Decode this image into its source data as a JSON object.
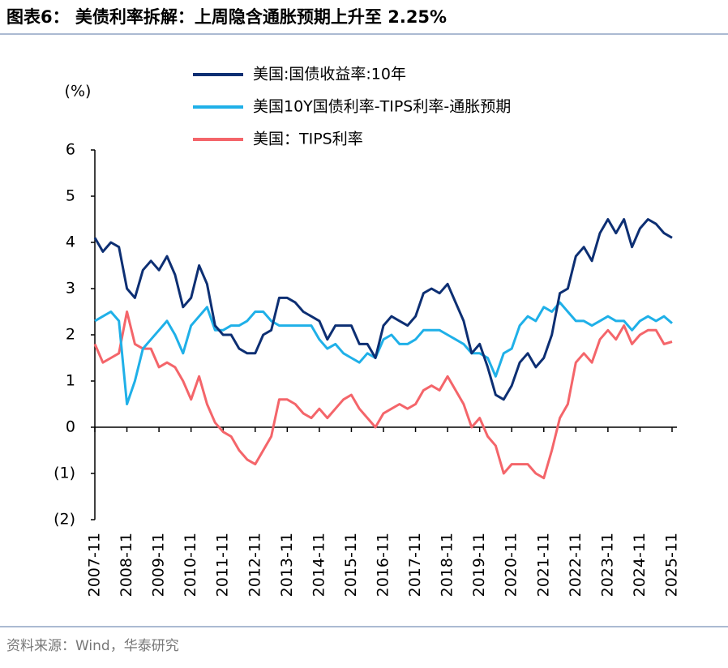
{
  "chart_data": {
    "type": "line",
    "title": "图表6： 美债利率拆解：上周隐含通胀预期上升至 2.25%",
    "y_label": "(%)",
    "source": "资料来源：Wind，华泰研究",
    "x": [
      "2007-11",
      "2008-02",
      "2008-05",
      "2008-08",
      "2008-11",
      "2009-02",
      "2009-05",
      "2009-08",
      "2009-11",
      "2010-02",
      "2010-05",
      "2010-08",
      "2010-11",
      "2011-02",
      "2011-05",
      "2011-08",
      "2011-11",
      "2012-02",
      "2012-05",
      "2012-08",
      "2012-11",
      "2013-02",
      "2013-05",
      "2013-08",
      "2013-11",
      "2014-02",
      "2014-05",
      "2014-08",
      "2014-11",
      "2015-02",
      "2015-05",
      "2015-08",
      "2015-11",
      "2016-02",
      "2016-05",
      "2016-08",
      "2016-11",
      "2017-02",
      "2017-05",
      "2017-08",
      "2017-11",
      "2018-02",
      "2018-05",
      "2018-08",
      "2018-11",
      "2019-02",
      "2019-05",
      "2019-08",
      "2019-11",
      "2020-02",
      "2020-05",
      "2020-08",
      "2020-11",
      "2021-02",
      "2021-05",
      "2021-08",
      "2021-11",
      "2022-02",
      "2022-05",
      "2022-08",
      "2022-11",
      "2023-02",
      "2023-05",
      "2023-08",
      "2023-11",
      "2024-02",
      "2024-05",
      "2024-08",
      "2024-11",
      "2025-02",
      "2025-05",
      "2025-08",
      "2025-11"
    ],
    "series": [
      {
        "name": "美国:国债收益率:10年",
        "color": "#0d2f73",
        "values": [
          4.1,
          3.8,
          4.0,
          3.9,
          3.0,
          2.8,
          3.4,
          3.6,
          3.4,
          3.7,
          3.3,
          2.6,
          2.8,
          3.5,
          3.1,
          2.2,
          2.0,
          2.0,
          1.7,
          1.6,
          1.6,
          2.0,
          2.1,
          2.8,
          2.8,
          2.7,
          2.5,
          2.4,
          2.3,
          1.9,
          2.2,
          2.2,
          2.2,
          1.8,
          1.8,
          1.5,
          2.2,
          2.4,
          2.3,
          2.2,
          2.4,
          2.9,
          3.0,
          2.9,
          3.1,
          2.7,
          2.3,
          1.6,
          1.8,
          1.3,
          0.7,
          0.6,
          0.9,
          1.4,
          1.6,
          1.3,
          1.5,
          2.0,
          2.9,
          3.0,
          3.7,
          3.9,
          3.6,
          4.2,
          4.5,
          4.2,
          4.5,
          3.9,
          4.3,
          4.5,
          4.4,
          4.2,
          4.1
        ]
      },
      {
        "name": "美国10Y国债利率-TIPS利率-通胀预期",
        "color": "#1fb0e8",
        "values": [
          2.3,
          2.4,
          2.5,
          2.3,
          0.5,
          1.0,
          1.7,
          1.9,
          2.1,
          2.3,
          2.0,
          1.6,
          2.2,
          2.4,
          2.6,
          2.1,
          2.1,
          2.2,
          2.2,
          2.3,
          2.5,
          2.5,
          2.3,
          2.2,
          2.2,
          2.2,
          2.2,
          2.2,
          1.9,
          1.7,
          1.8,
          1.6,
          1.5,
          1.4,
          1.6,
          1.5,
          1.9,
          2.0,
          1.8,
          1.8,
          1.9,
          2.1,
          2.1,
          2.1,
          2.0,
          1.9,
          1.8,
          1.6,
          1.6,
          1.5,
          1.1,
          1.6,
          1.7,
          2.2,
          2.4,
          2.3,
          2.6,
          2.5,
          2.7,
          2.5,
          2.3,
          2.3,
          2.2,
          2.3,
          2.4,
          2.3,
          2.3,
          2.1,
          2.3,
          2.4,
          2.3,
          2.4,
          2.25
        ]
      },
      {
        "name": "美国：TIPS利率",
        "color": "#f4656a",
        "values": [
          1.8,
          1.4,
          1.5,
          1.6,
          2.5,
          1.8,
          1.7,
          1.7,
          1.3,
          1.4,
          1.3,
          1.0,
          0.6,
          1.1,
          0.5,
          0.1,
          -0.1,
          -0.2,
          -0.5,
          -0.7,
          -0.8,
          -0.5,
          -0.2,
          0.6,
          0.6,
          0.5,
          0.3,
          0.2,
          0.4,
          0.2,
          0.4,
          0.6,
          0.7,
          0.4,
          0.2,
          0.0,
          0.3,
          0.4,
          0.5,
          0.4,
          0.5,
          0.8,
          0.9,
          0.8,
          1.1,
          0.8,
          0.5,
          0.0,
          0.2,
          -0.2,
          -0.4,
          -1.0,
          -0.8,
          -0.8,
          -0.8,
          -1.0,
          -1.1,
          -0.5,
          0.2,
          0.5,
          1.4,
          1.6,
          1.4,
          1.9,
          2.1,
          1.9,
          2.2,
          1.8,
          2.0,
          2.1,
          2.1,
          1.8,
          1.85
        ]
      }
    ],
    "xlim": [
      "2007-11",
      "2025-11"
    ],
    "xticks": [
      "2007-11",
      "2008-11",
      "2009-11",
      "2010-11",
      "2011-11",
      "2012-11",
      "2013-11",
      "2014-11",
      "2015-11",
      "2016-11",
      "2017-11",
      "2018-11",
      "2019-11",
      "2020-11",
      "2021-11",
      "2022-11",
      "2023-11",
      "2024-11",
      "2025-11"
    ],
    "ylim": [
      -2,
      6
    ],
    "yticks": [
      {
        "value": -2,
        "label": "(2)"
      },
      {
        "value": -1,
        "label": "(1)"
      },
      0,
      1,
      2,
      3,
      4,
      5,
      6
    ],
    "grid": false
  }
}
